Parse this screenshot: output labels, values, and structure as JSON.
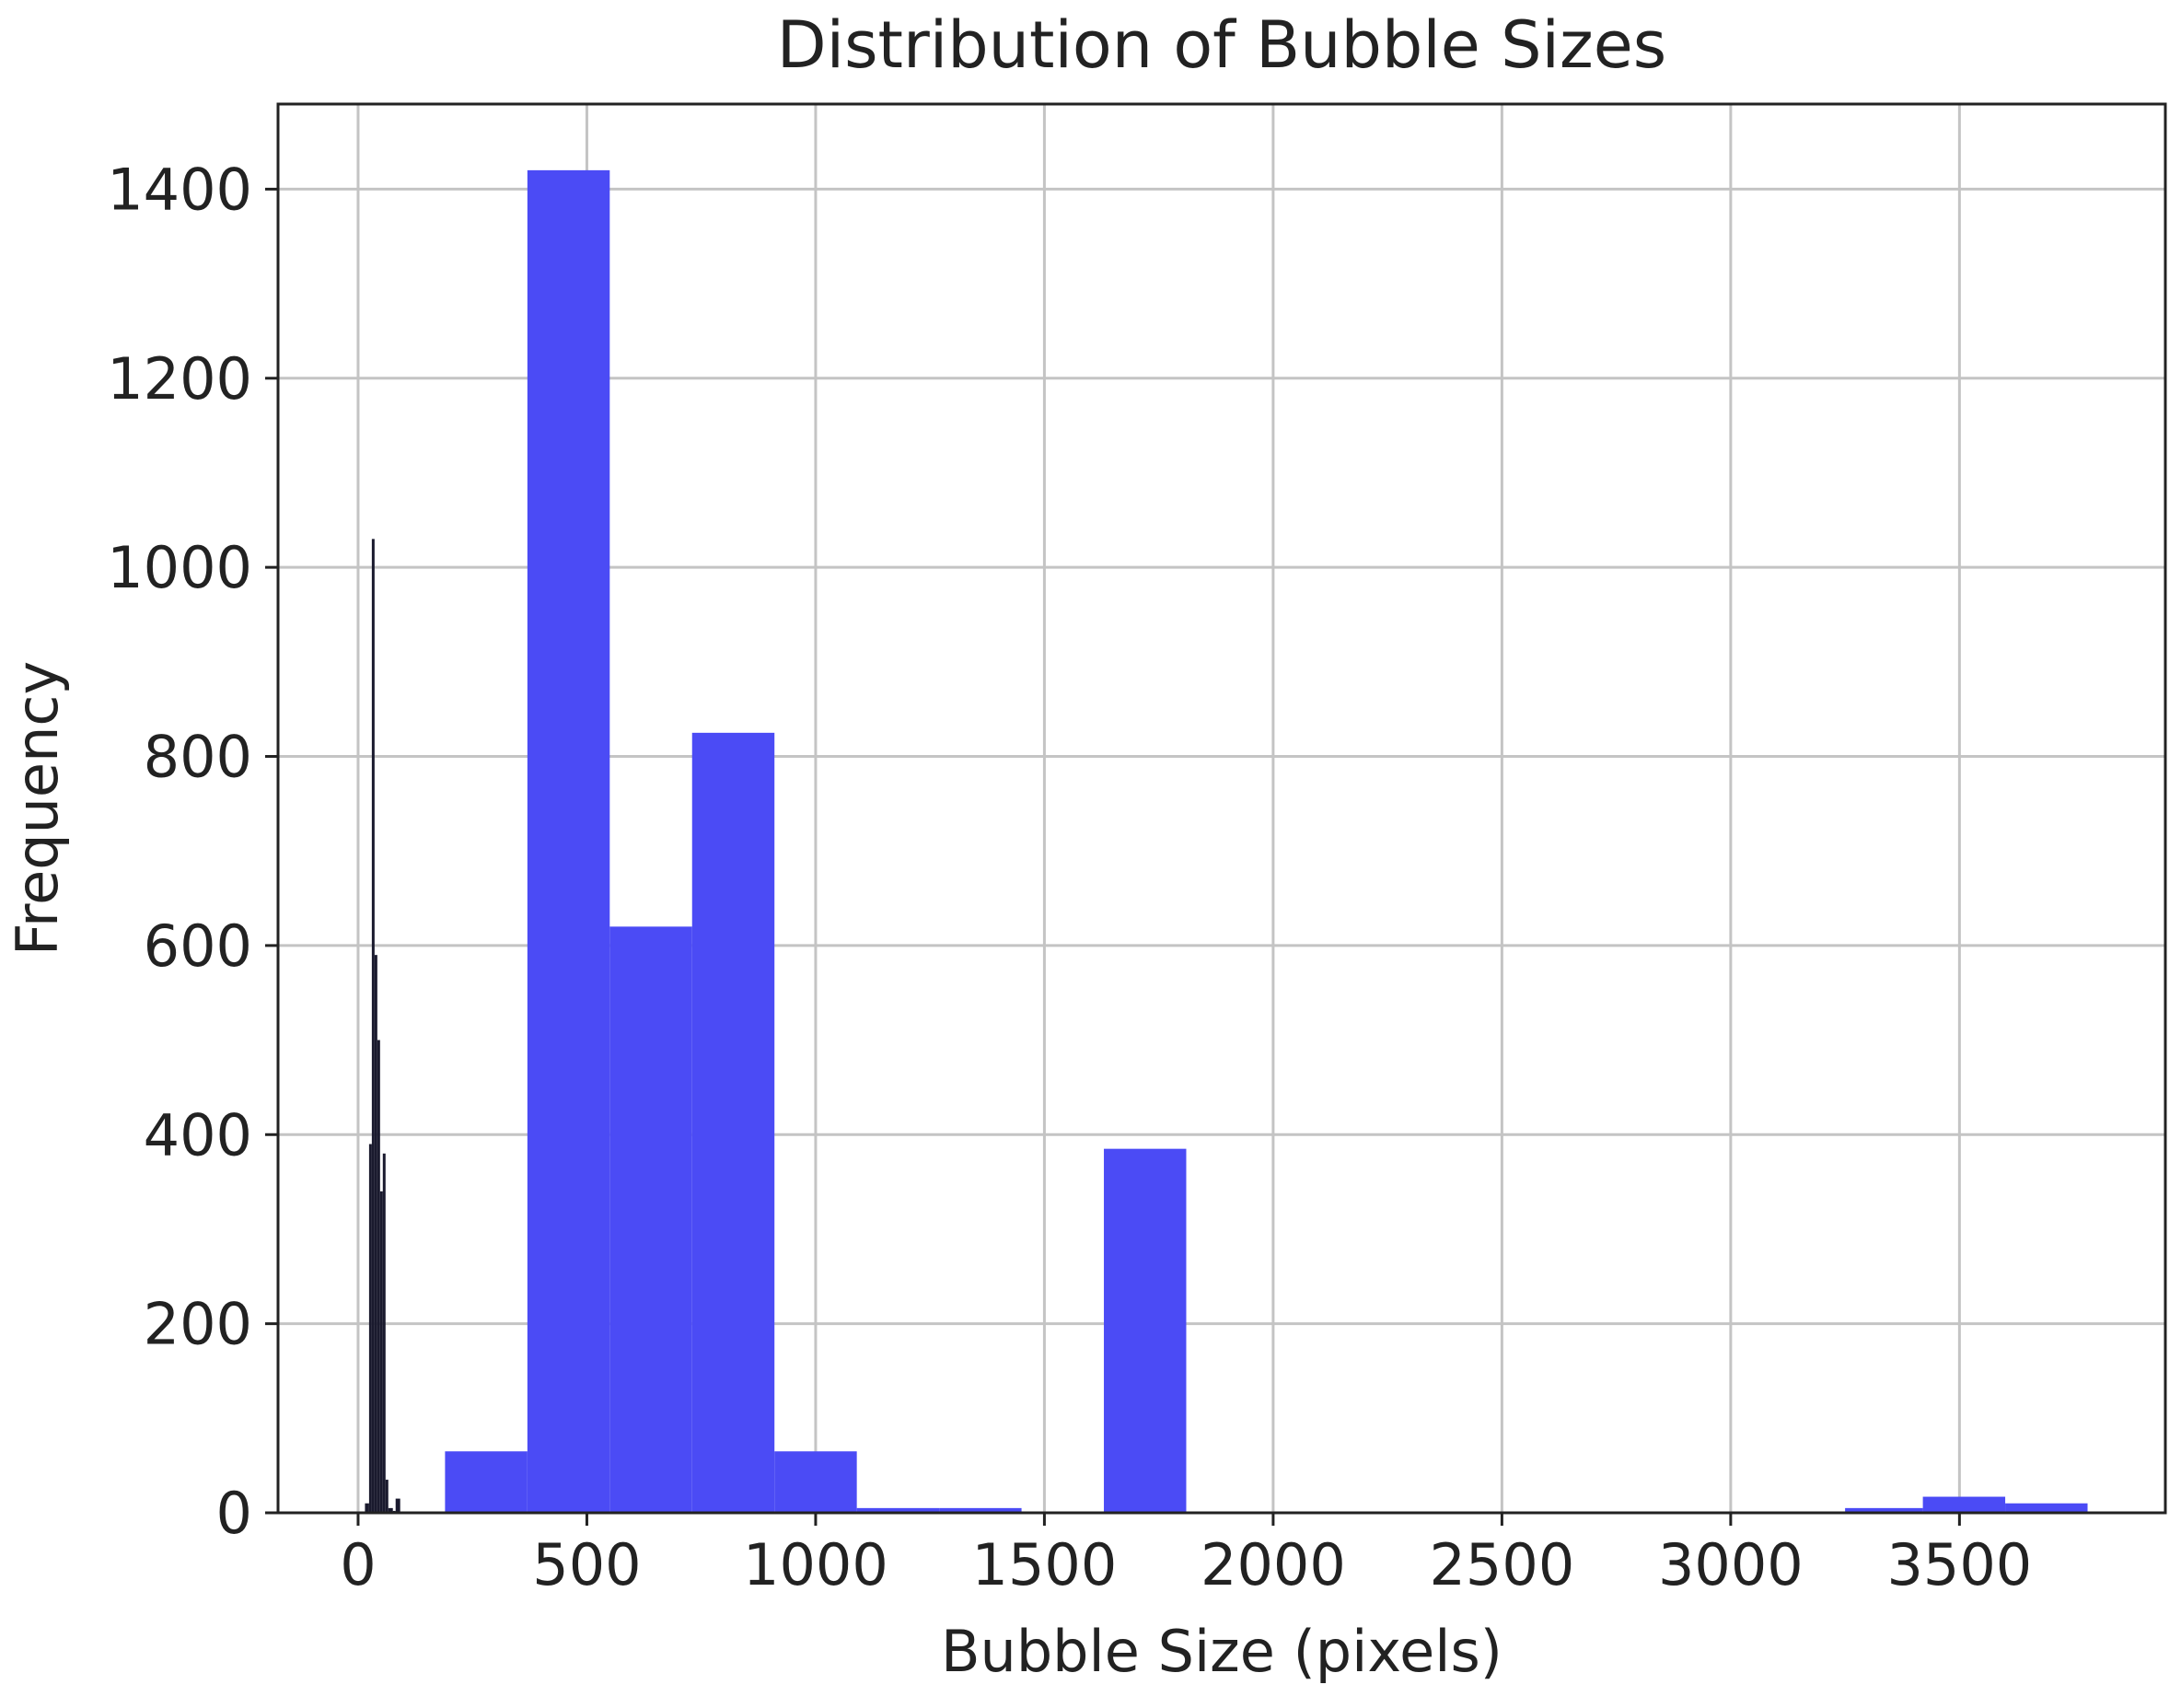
{
  "chart_data": {
    "type": "bar",
    "title": "Distribution of Bubble Sizes",
    "xlabel": "Bubble Size (pixels)",
    "ylabel": "Frequency",
    "xlim": [
      -175,
      3950
    ],
    "ylim": [
      0,
      1490
    ],
    "xticks": [
      0,
      500,
      1000,
      1500,
      2000,
      2500,
      3000,
      3500
    ],
    "yticks": [
      0,
      200,
      400,
      600,
      800,
      1000,
      1200,
      1400
    ],
    "grid": true,
    "series": [
      {
        "color": "#4b4bf5",
        "bins": [
          {
            "x0": 190,
            "x1": 370,
            "count": 65
          },
          {
            "x0": 370,
            "x1": 550,
            "count": 1420
          },
          {
            "x0": 550,
            "x1": 730,
            "count": 620
          },
          {
            "x0": 730,
            "x1": 910,
            "count": 825
          },
          {
            "x0": 910,
            "x1": 1090,
            "count": 65
          },
          {
            "x0": 1090,
            "x1": 1270,
            "count": 5
          },
          {
            "x0": 1270,
            "x1": 1450,
            "count": 5
          },
          {
            "x0": 1450,
            "x1": 1630,
            "count": 0
          },
          {
            "x0": 1630,
            "x1": 1810,
            "count": 385
          },
          {
            "x0": 3250,
            "x1": 3420,
            "count": 5
          },
          {
            "x0": 3420,
            "x1": 3600,
            "count": 17
          },
          {
            "x0": 3600,
            "x1": 3780,
            "count": 10
          }
        ]
      },
      {
        "color": "#1a1a2e",
        "bins": [
          {
            "x0": 15,
            "x1": 24,
            "count": 10
          },
          {
            "x0": 24,
            "x1": 30,
            "count": 390
          },
          {
            "x0": 30,
            "x1": 36,
            "count": 1030
          },
          {
            "x0": 36,
            "x1": 42,
            "count": 590
          },
          {
            "x0": 42,
            "x1": 48,
            "count": 500
          },
          {
            "x0": 48,
            "x1": 54,
            "count": 340
          },
          {
            "x0": 54,
            "x1": 60,
            "count": 380
          },
          {
            "x0": 60,
            "x1": 66,
            "count": 35
          },
          {
            "x0": 66,
            "x1": 76,
            "count": 5
          },
          {
            "x0": 76,
            "x1": 82,
            "count": 2
          },
          {
            "x0": 82,
            "x1": 92,
            "count": 15
          }
        ]
      }
    ]
  }
}
